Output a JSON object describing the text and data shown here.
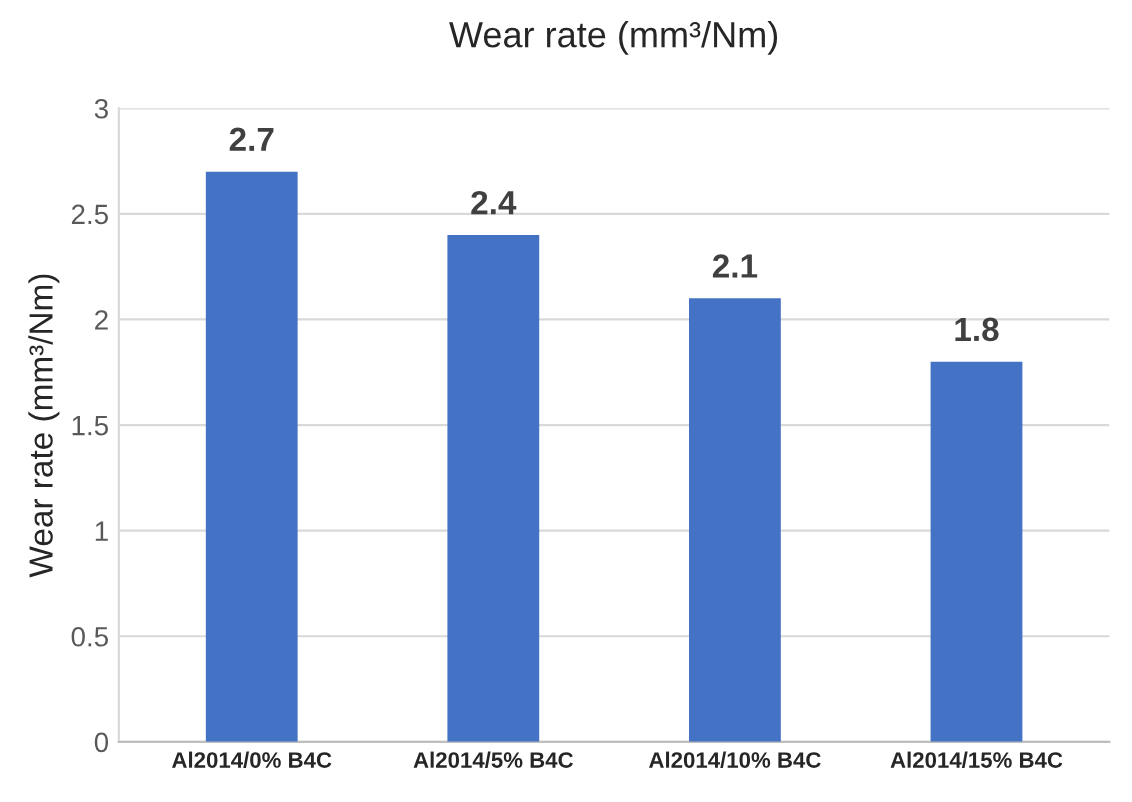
{
  "chart_data": {
    "type": "bar",
    "title": "Wear rate (mm³/Nm)",
    "ylabel": "Wear rate (mm³/Nm)",
    "categories": [
      "Al2014/0% B4C",
      "Al2014/5% B4C",
      "Al2014/10% B4C",
      "Al2014/15% B4C"
    ],
    "values": [
      2.7,
      2.4,
      2.1,
      1.8
    ],
    "color": "#4472c4",
    "ylim": [
      0,
      3
    ],
    "yticks": [
      0,
      0.5,
      1,
      1.5,
      2,
      2.5,
      3
    ],
    "grid": "y",
    "data_labels": true
  }
}
